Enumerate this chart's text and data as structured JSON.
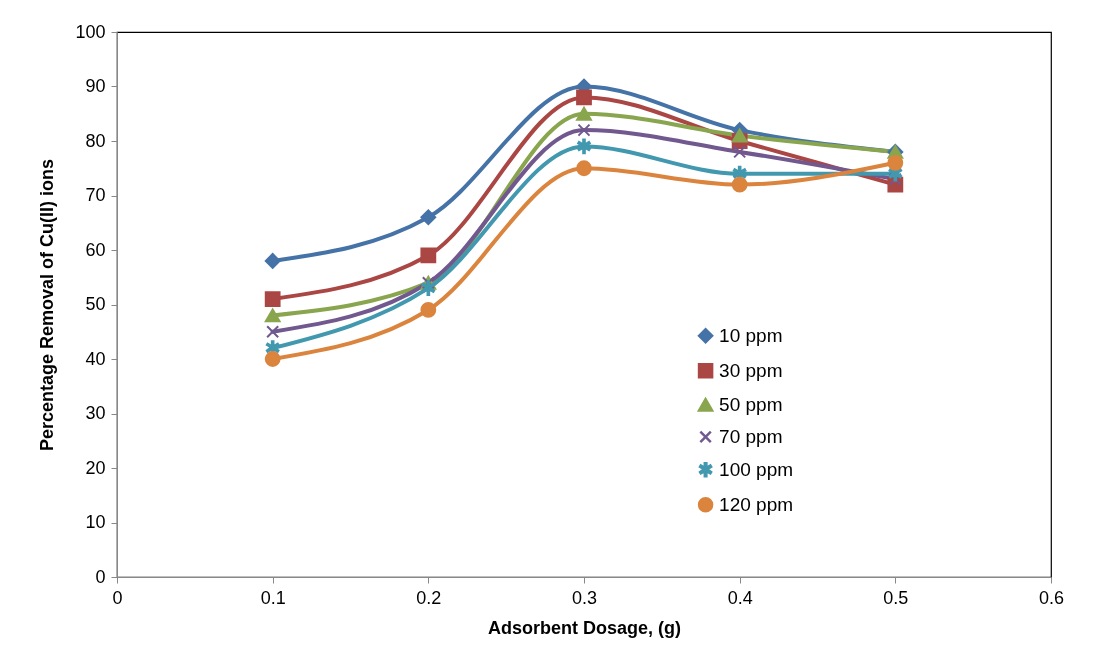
{
  "chart_data": {
    "type": "line",
    "xlabel": "Adsorbent Dosage, (g)",
    "ylabel": "Percentage Removal of Cu(II) ions",
    "x": [
      0.1,
      0.2,
      0.3,
      0.4,
      0.5
    ],
    "series": [
      {
        "name": "10 ppm",
        "color": "#4572a7",
        "marker": "diamond",
        "values": [
          58,
          66,
          90,
          82,
          78
        ]
      },
      {
        "name": "30 ppm",
        "color": "#aa4643",
        "marker": "square",
        "values": [
          51,
          59,
          88,
          80,
          72
        ]
      },
      {
        "name": "50 ppm",
        "color": "#89a54e",
        "marker": "triangle",
        "values": [
          48,
          54,
          85,
          81,
          78
        ]
      },
      {
        "name": "70 ppm",
        "color": "#71588f",
        "marker": "cross",
        "values": [
          45,
          54,
          82,
          78,
          73
        ]
      },
      {
        "name": "100 ppm",
        "color": "#4198af",
        "marker": "star",
        "values": [
          42,
          53,
          79,
          74,
          74
        ]
      },
      {
        "name": "120 ppm",
        "color": "#db843d",
        "marker": "circle",
        "values": [
          40,
          49,
          75,
          72,
          76
        ]
      }
    ],
    "xlim": [
      0,
      0.6
    ],
    "xticks": [
      0,
      0.1,
      0.2,
      0.3,
      0.4,
      0.5,
      0.6
    ],
    "ylim": [
      0,
      100
    ],
    "yticks": [
      0,
      10,
      20,
      30,
      40,
      50,
      60,
      70,
      80,
      90,
      100
    ],
    "grid": false,
    "legend": "right",
    "line_style": "solid"
  }
}
